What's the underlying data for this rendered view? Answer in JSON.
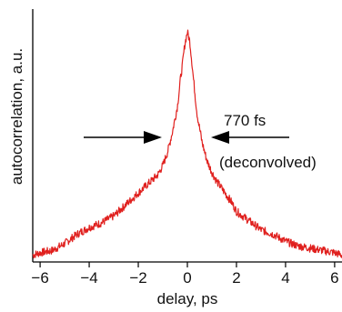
{
  "chart_data": {
    "type": "line",
    "xlabel": "delay, ps",
    "ylabel": "autocorrelation, a.u.",
    "xlim": [
      -6.3,
      6.3
    ],
    "ylim": [
      0,
      1.1
    ],
    "xticks": [
      -6,
      -4,
      -2,
      0,
      2,
      4,
      6
    ],
    "xtick_labels": [
      "−6",
      "−4",
      "−2",
      "0",
      "2",
      "4",
      "6"
    ],
    "grid": false,
    "series": [
      {
        "color": "#e0201e",
        "x": [
          -6.3,
          -6.0,
          -5.5,
          -5.0,
          -4.5,
          -4.0,
          -3.5,
          -3.0,
          -2.5,
          -2.0,
          -1.8,
          -1.6,
          -1.4,
          -1.2,
          -1.0,
          -0.8,
          -0.6,
          -0.4,
          -0.3,
          -0.2,
          -0.1,
          0.0,
          0.1,
          0.2,
          0.3,
          0.4,
          0.6,
          0.8,
          1.0,
          1.2,
          1.4,
          1.6,
          1.8,
          2.0,
          2.5,
          3.0,
          3.5,
          4.0,
          4.5,
          5.0,
          5.5,
          6.0,
          6.3
        ],
        "y": [
          0.03,
          0.04,
          0.05,
          0.08,
          0.12,
          0.15,
          0.17,
          0.2,
          0.25,
          0.3,
          0.32,
          0.34,
          0.36,
          0.38,
          0.42,
          0.48,
          0.57,
          0.68,
          0.78,
          0.86,
          0.95,
          1.0,
          0.96,
          0.85,
          0.74,
          0.64,
          0.52,
          0.44,
          0.39,
          0.35,
          0.32,
          0.29,
          0.26,
          0.22,
          0.18,
          0.14,
          0.12,
          0.09,
          0.07,
          0.06,
          0.05,
          0.04,
          0.03
        ]
      }
    ],
    "annotations": [
      {
        "text": "770 fs"
      },
      {
        "text": "(deconvolved)"
      }
    ]
  }
}
